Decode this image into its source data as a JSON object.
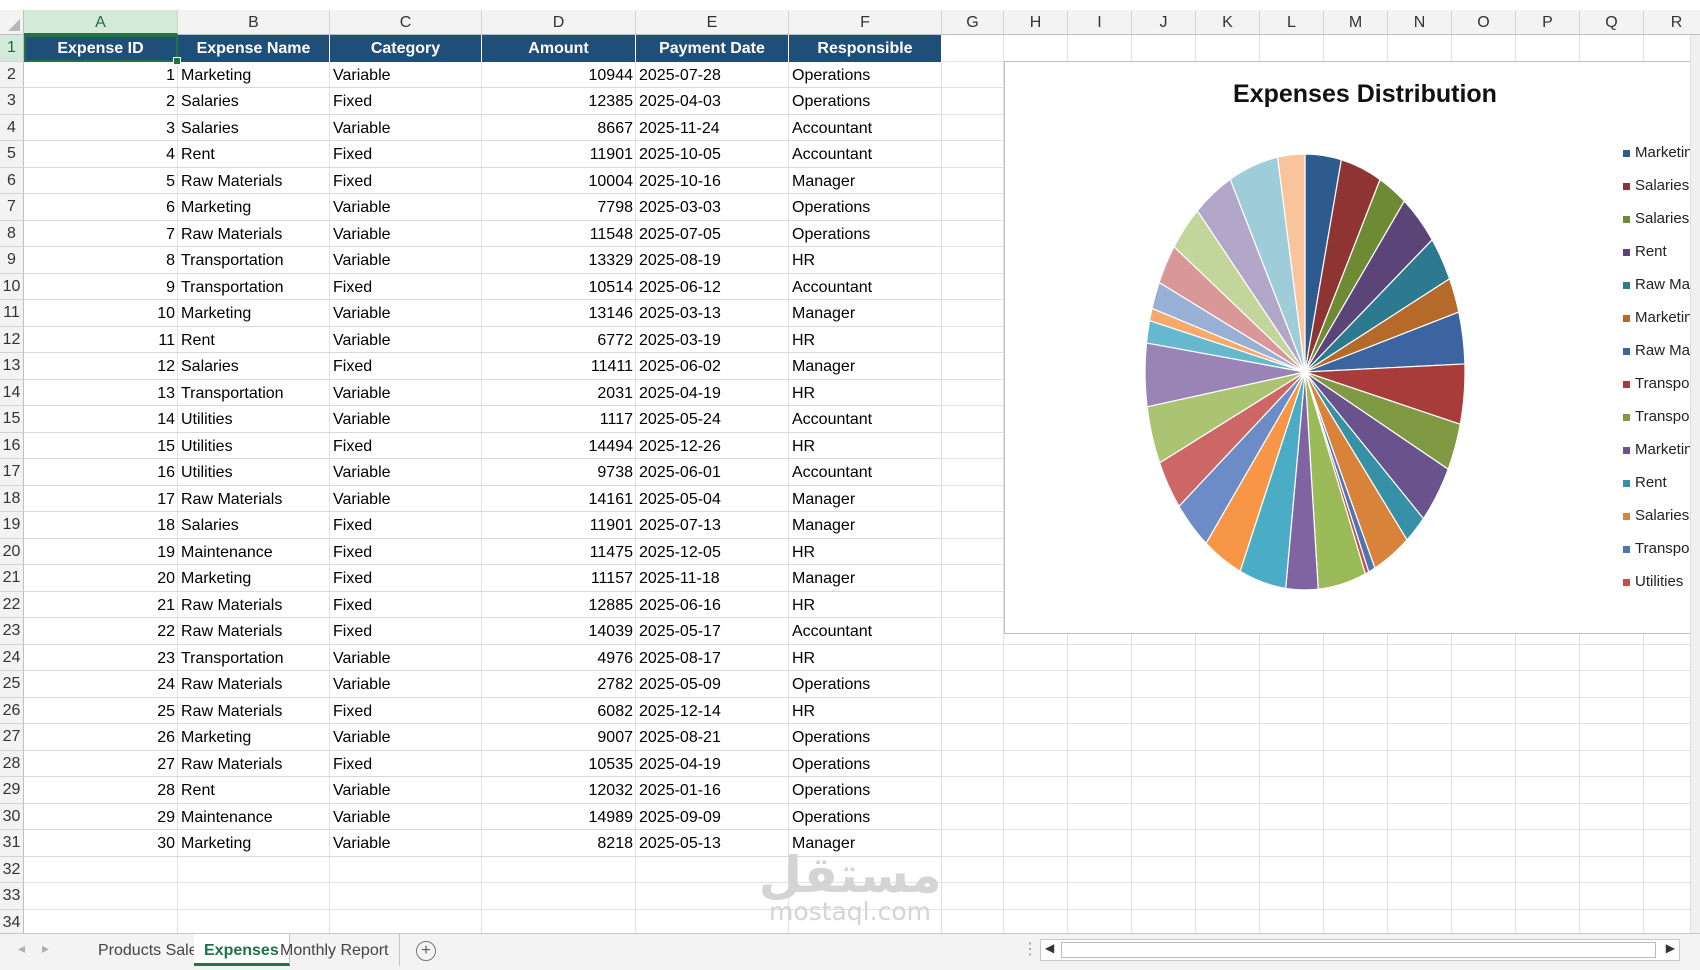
{
  "columns": [
    "A",
    "B",
    "C",
    "D",
    "E",
    "F",
    "G",
    "H",
    "I",
    "J",
    "K",
    "L",
    "M",
    "N",
    "O",
    "P",
    "Q",
    "R"
  ],
  "rows": [
    "1",
    "2",
    "3",
    "4",
    "5",
    "6",
    "7",
    "8",
    "9",
    "10",
    "11",
    "12",
    "13",
    "14",
    "15",
    "16",
    "17",
    "18",
    "19",
    "20",
    "21",
    "22",
    "23",
    "24",
    "25",
    "26",
    "27",
    "28",
    "29",
    "30",
    "31",
    "32",
    "33",
    "34"
  ],
  "table": {
    "headers": [
      "Expense ID",
      "Expense Name",
      "Category",
      "Amount",
      "Payment Date",
      "Responsible"
    ],
    "rows": [
      [
        "1",
        "Marketing",
        "Variable",
        "10944",
        "2025-07-28",
        "Operations"
      ],
      [
        "2",
        "Salaries",
        "Fixed",
        "12385",
        "2025-04-03",
        "Operations"
      ],
      [
        "3",
        "Salaries",
        "Variable",
        "8667",
        "2025-11-24",
        "Accountant"
      ],
      [
        "4",
        "Rent",
        "Fixed",
        "11901",
        "2025-10-05",
        "Accountant"
      ],
      [
        "5",
        "Raw Materials",
        "Fixed",
        "10004",
        "2025-10-16",
        "Manager"
      ],
      [
        "6",
        "Marketing",
        "Variable",
        "7798",
        "2025-03-03",
        "Operations"
      ],
      [
        "7",
        "Raw Materials",
        "Variable",
        "11548",
        "2025-07-05",
        "Operations"
      ],
      [
        "8",
        "Transportation",
        "Variable",
        "13329",
        "2025-08-19",
        "HR"
      ],
      [
        "9",
        "Transportation",
        "Fixed",
        "10514",
        "2025-06-12",
        "Accountant"
      ],
      [
        "10",
        "Marketing",
        "Variable",
        "13146",
        "2025-03-13",
        "Manager"
      ],
      [
        "11",
        "Rent",
        "Variable",
        "6772",
        "2025-03-19",
        "HR"
      ],
      [
        "12",
        "Salaries",
        "Fixed",
        "11411",
        "2025-06-02",
        "Manager"
      ],
      [
        "13",
        "Transportation",
        "Variable",
        "2031",
        "2025-04-19",
        "HR"
      ],
      [
        "14",
        "Utilities",
        "Variable",
        "1117",
        "2025-05-24",
        "Accountant"
      ],
      [
        "15",
        "Utilities",
        "Fixed",
        "14494",
        "2025-12-26",
        "HR"
      ],
      [
        "16",
        "Utilities",
        "Variable",
        "9738",
        "2025-06-01",
        "Accountant"
      ],
      [
        "17",
        "Raw Materials",
        "Variable",
        "14161",
        "2025-05-04",
        "Manager"
      ],
      [
        "18",
        "Salaries",
        "Fixed",
        "11901",
        "2025-07-13",
        "Manager"
      ],
      [
        "19",
        "Maintenance",
        "Fixed",
        "11475",
        "2025-12-05",
        "HR"
      ],
      [
        "20",
        "Marketing",
        "Fixed",
        "11157",
        "2025-11-18",
        "Manager"
      ],
      [
        "21",
        "Raw Materials",
        "Fixed",
        "12885",
        "2025-06-16",
        "HR"
      ],
      [
        "22",
        "Raw Materials",
        "Fixed",
        "14039",
        "2025-05-17",
        "Accountant"
      ],
      [
        "23",
        "Transportation",
        "Variable",
        "4976",
        "2025-08-17",
        "HR"
      ],
      [
        "24",
        "Raw Materials",
        "Variable",
        "2782",
        "2025-05-09",
        "Operations"
      ],
      [
        "25",
        "Raw Materials",
        "Fixed",
        "6082",
        "2025-12-14",
        "HR"
      ],
      [
        "26",
        "Marketing",
        "Variable",
        "9007",
        "2025-08-21",
        "Operations"
      ],
      [
        "27",
        "Raw Materials",
        "Fixed",
        "10535",
        "2025-04-19",
        "Operations"
      ],
      [
        "28",
        "Rent",
        "Variable",
        "12032",
        "2025-01-16",
        "Operations"
      ],
      [
        "29",
        "Maintenance",
        "Variable",
        "14989",
        "2025-09-09",
        "Operations"
      ],
      [
        "30",
        "Marketing",
        "Variable",
        "8218",
        "2025-05-13",
        "Manager"
      ]
    ]
  },
  "chart_data": {
    "type": "pie",
    "title": "Expenses Distribution",
    "categories": [
      "Marketing",
      "Salaries",
      "Salaries",
      "Rent",
      "Raw Materials",
      "Marketing",
      "Raw Materials",
      "Transportation",
      "Transportation",
      "Marketing",
      "Rent",
      "Salaries",
      "Transportation",
      "Utilities",
      "Utilities",
      "Utilities",
      "Raw Materials",
      "Salaries",
      "Maintenance",
      "Marketing",
      "Raw Materials",
      "Raw Materials",
      "Transportation",
      "Raw Materials",
      "Raw Materials",
      "Marketing",
      "Raw Materials",
      "Rent",
      "Maintenance",
      "Marketing"
    ],
    "values": [
      10944,
      12385,
      8667,
      11901,
      10004,
      7798,
      11548,
      13329,
      10514,
      13146,
      6772,
      11411,
      2031,
      1117,
      14494,
      9738,
      14161,
      11901,
      11475,
      11157,
      12885,
      14039,
      4976,
      2782,
      6082,
      9007,
      10535,
      12032,
      14989,
      8218
    ],
    "legend": {
      "placement": "right",
      "visible_entries": [
        "Marketing",
        "Salaries",
        "Salaries",
        "Rent",
        "Raw Mater",
        "Marketing",
        "Raw Mater",
        "Transporta",
        "Transporta",
        "Marketing",
        "Rent",
        "Salaries",
        "Transporta",
        "Utilities"
      ]
    },
    "colors": [
      "#2e5b8e",
      "#8e3533",
      "#6f8a35",
      "#5a4478",
      "#2d7a90",
      "#b56a2a",
      "#3c64a0",
      "#a83c3a",
      "#7f9a43",
      "#6a528c",
      "#3690a6",
      "#d9833a",
      "#4f74b2",
      "#c0504d",
      "#9bbb59",
      "#8064a2",
      "#4bacc6",
      "#f79646",
      "#6b8cc7",
      "#cd6766",
      "#aac474",
      "#9a84b6",
      "#66b8ce",
      "#f6a96a",
      "#98afd6",
      "#d99897",
      "#c2d59b",
      "#b3a7c9",
      "#9fccd9",
      "#f9c39b"
    ],
    "slice_stroke": "#ffffff"
  },
  "tabs": [
    "Products Sales",
    "Expenses",
    "Monthly Report"
  ],
  "active_tab": "Expenses",
  "watermark": {
    "arabic": "مستقل",
    "latin": "mostaql.com"
  }
}
